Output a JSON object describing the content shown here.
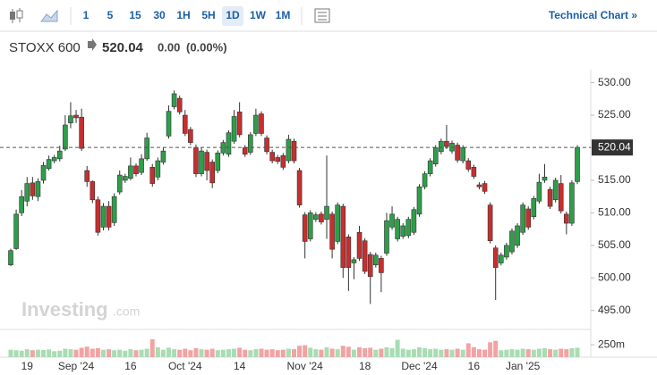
{
  "toolbar": {
    "intervals": [
      "1",
      "5",
      "15",
      "30",
      "1H",
      "5H",
      "1D",
      "1W",
      "1M"
    ],
    "active": "1D",
    "link": "Technical Chart »"
  },
  "header": {
    "symbol": "STOXX 600",
    "change": {
      "value": 0,
      "label": "0.00"
    },
    "change_pct": {
      "value": 0,
      "label": "(0.00%)"
    }
  },
  "watermark": {
    "brand": "Investing",
    "suffix": ".com"
  },
  "chart_data": {
    "type": "candlestick",
    "categories": [
      null,
      null,
      null,
      "19",
      null,
      null,
      null,
      null,
      null,
      null,
      null,
      null,
      "Sep '24",
      null,
      null,
      null,
      null,
      null,
      null,
      null,
      null,
      null,
      "16",
      null,
      null,
      null,
      null,
      null,
      null,
      null,
      null,
      null,
      "Oct '24",
      null,
      null,
      null,
      null,
      null,
      null,
      null,
      null,
      null,
      "14",
      null,
      null,
      null,
      null,
      null,
      null,
      null,
      null,
      null,
      null,
      null,
      "Nov '24",
      null,
      null,
      null,
      null,
      null,
      null,
      null,
      null,
      null,
      null,
      "18",
      null,
      null,
      null,
      null,
      null,
      null,
      null,
      null,
      null,
      "Dec '24",
      null,
      null,
      null,
      null,
      null,
      null,
      null,
      null,
      null,
      "16",
      null,
      null,
      null,
      null,
      null,
      null,
      null,
      null,
      "Jan '25",
      null,
      null,
      null,
      null,
      null,
      null,
      null,
      null,
      null,
      null
    ],
    "open": [
      502.0,
      504.5,
      510.0,
      511.8,
      514.6,
      512.5,
      515.0,
      516.8,
      518.0,
      518.3,
      519.8,
      523.8,
      525.0,
      524.7,
      516.5,
      514.8,
      512.0,
      507.8,
      511.0,
      508.5,
      513.2,
      515.0,
      515.3,
      517.2,
      516.2,
      518.3,
      517.0,
      515.5,
      517.8,
      521.8,
      526.3,
      527.6,
      525.0,
      522.8,
      520.0,
      516.0,
      519.3,
      517.8,
      516.5,
      519.2,
      519.0,
      521.0,
      525.5,
      520.0,
      519.3,
      522.2,
      525.2,
      521.5,
      519.3,
      518.5,
      518.8,
      518.0,
      521.0,
      516.5,
      509.7,
      506.0,
      509.0,
      509.8,
      509.0,
      509.8,
      505.6,
      511.0,
      506.3,
      502.3,
      507.0,
      505.7,
      503.6,
      502.0,
      503.0,
      503.8,
      507.8,
      506.0,
      506.4,
      506.5,
      507.0,
      509.8,
      514.0,
      516.0,
      517.5,
      519.4,
      521.0,
      519.5,
      520.4,
      518.0,
      518.0,
      517.0,
      514.3,
      514.5,
      511.2,
      504.6,
      502.3,
      503.2,
      504.0,
      505.0,
      507.0,
      510.6,
      509.4,
      511.8,
      515.0,
      513.6,
      512.0,
      514.5,
      509.8,
      508.4,
      514.8
    ],
    "high": [
      504.5,
      510.5,
      513.5,
      515.5,
      515.5,
      515.3,
      517.8,
      518.8,
      518.9,
      520.3,
      525.0,
      527.0,
      525.8,
      526.0,
      517.2,
      515.0,
      512.5,
      511.5,
      511.8,
      513.0,
      516.5,
      516.0,
      518.5,
      517.6,
      519.0,
      522.3,
      517.5,
      518.5,
      520.0,
      526.5,
      528.8,
      528.0,
      525.8,
      523.2,
      520.5,
      520.0,
      519.7,
      518.2,
      519.6,
      521.2,
      522.7,
      525.8,
      527.0,
      520.4,
      522.4,
      526.0,
      525.6,
      521.9,
      519.7,
      518.9,
      519.2,
      522.0,
      521.4,
      516.9,
      510.1,
      510.4,
      510.1,
      510.2,
      518.8,
      510.2,
      511.6,
      511.4,
      506.7,
      503.2,
      508.0,
      506.1,
      504.0,
      503.9,
      503.4,
      510.0,
      511.0,
      509.4,
      508.4,
      509.4,
      510.9,
      514.4,
      516.4,
      518.4,
      520.4,
      521.4,
      523.5,
      521.1,
      520.8,
      520.4,
      518.4,
      517.4,
      514.7,
      514.9,
      511.6,
      505.0,
      503.9,
      505.4,
      507.6,
      508.4,
      511.6,
      511.0,
      512.6,
      516.0,
      517.5,
      514.0,
      515.4,
      515.8,
      510.2,
      515.0,
      520.4
    ],
    "low": [
      501.8,
      504.3,
      509.5,
      511.0,
      512.0,
      511.8,
      514.5,
      516.5,
      517.6,
      517.9,
      519.5,
      523.0,
      523.8,
      519.5,
      514.0,
      511.5,
      506.5,
      507.3,
      507.3,
      508.0,
      512.8,
      514.6,
      515.0,
      515.6,
      515.8,
      518.0,
      514.0,
      515.0,
      517.4,
      521.4,
      525.9,
      525.1,
      521.8,
      520.4,
      515.5,
      515.6,
      515.0,
      513.8,
      516.1,
      518.8,
      518.6,
      520.6,
      521.6,
      518.6,
      518.9,
      521.8,
      521.8,
      519.0,
      517.6,
      517.5,
      516.6,
      517.6,
      517.6,
      510.8,
      503.0,
      505.6,
      508.6,
      508.2,
      506.0,
      503.0,
      505.2,
      500.0,
      498.0,
      499.8,
      502.6,
      500.6,
      496.0,
      501.6,
      497.8,
      503.4,
      507.4,
      505.6,
      506.0,
      506.1,
      506.6,
      509.4,
      513.6,
      515.6,
      517.1,
      519.0,
      519.8,
      519.1,
      517.7,
      517.6,
      516.3,
      515.2,
      513.6,
      512.9,
      505.3,
      496.6,
      501.9,
      502.8,
      503.6,
      504.6,
      506.6,
      507.4,
      509.0,
      511.4,
      514.6,
      510.6,
      511.6,
      509.9,
      506.7,
      508.0,
      514.4
    ],
    "close": [
      504.2,
      509.8,
      512.5,
      514.5,
      512.6,
      514.8,
      517.3,
      518.2,
      518.5,
      519.5,
      523.5,
      524.9,
      524.6,
      519.9,
      514.8,
      512.0,
      507.0,
      511.0,
      507.8,
      512.5,
      515.8,
      515.6,
      517.2,
      516.0,
      518.3,
      521.5,
      514.5,
      518.0,
      519.5,
      525.6,
      528.3,
      525.5,
      522.2,
      520.8,
      516.0,
      519.5,
      516.5,
      514.6,
      519.2,
      520.8,
      522.3,
      524.8,
      522.0,
      519.0,
      522.0,
      525.0,
      522.2,
      519.4,
      518.0,
      517.9,
      517.0,
      521.3,
      518.0,
      511.2,
      505.6,
      510.0,
      509.7,
      508.6,
      511.0,
      504.4,
      511.2,
      501.6,
      501.6,
      502.8,
      503.0,
      501.0,
      500.2,
      503.5,
      500.8,
      508.8,
      509.8,
      509.0,
      508.0,
      509.0,
      510.5,
      514.0,
      516.0,
      518.0,
      520.0,
      521.0,
      520.2,
      520.7,
      518.1,
      520.0,
      516.7,
      515.6,
      514.0,
      513.3,
      505.7,
      501.6,
      503.5,
      505.0,
      507.2,
      508.0,
      511.2,
      507.8,
      512.2,
      514.7,
      515.5,
      511.0,
      515.0,
      510.3,
      508.4,
      514.6,
      520.04
    ],
    "volume": [
      150,
      140,
      130,
      160,
      140,
      150,
      145,
      155,
      120,
      130,
      170,
      160,
      150,
      190,
      210,
      170,
      180,
      150,
      160,
      140,
      150,
      130,
      160,
      140,
      150,
      170,
      360,
      200,
      150,
      190,
      160,
      150,
      170,
      140,
      180,
      160,
      150,
      170,
      140,
      150,
      160,
      170,
      190,
      150,
      140,
      160,
      170,
      150,
      160,
      140,
      150,
      170,
      160,
      230,
      240,
      190,
      160,
      150,
      200,
      170,
      160,
      230,
      210,
      150,
      200,
      180,
      190,
      150,
      170,
      200,
      180,
      350,
      170,
      150,
      160,
      200,
      180,
      160,
      170,
      150,
      160,
      150,
      170,
      150,
      280,
      200,
      160,
      150,
      300,
      330,
      140,
      150,
      160,
      150,
      170,
      160,
      150,
      170,
      180,
      160,
      150,
      170,
      160,
      180,
      190
    ],
    "ylim": [
      494,
      532
    ],
    "yticks": [
      {
        "value": 495,
        "label": "495.00"
      },
      {
        "value": 500,
        "label": "500.00"
      },
      {
        "value": 505,
        "label": "505.00"
      },
      {
        "value": 510,
        "label": "510.00"
      },
      {
        "value": 515,
        "label": "515.00"
      },
      {
        "value": 520,
        "label": "520.00"
      },
      {
        "value": 525,
        "label": "525.00"
      },
      {
        "value": 530,
        "label": "530.00"
      }
    ],
    "vlim": [
      0,
      540
    ],
    "vticks": [
      {
        "value": 250,
        "label": "250m"
      }
    ],
    "up_color": "#2e9e4a",
    "down_color": "#c62f2f",
    "vol_up_color": "#a9dcb3",
    "vol_down_color": "#f2a3a3",
    "grid": false
  }
}
